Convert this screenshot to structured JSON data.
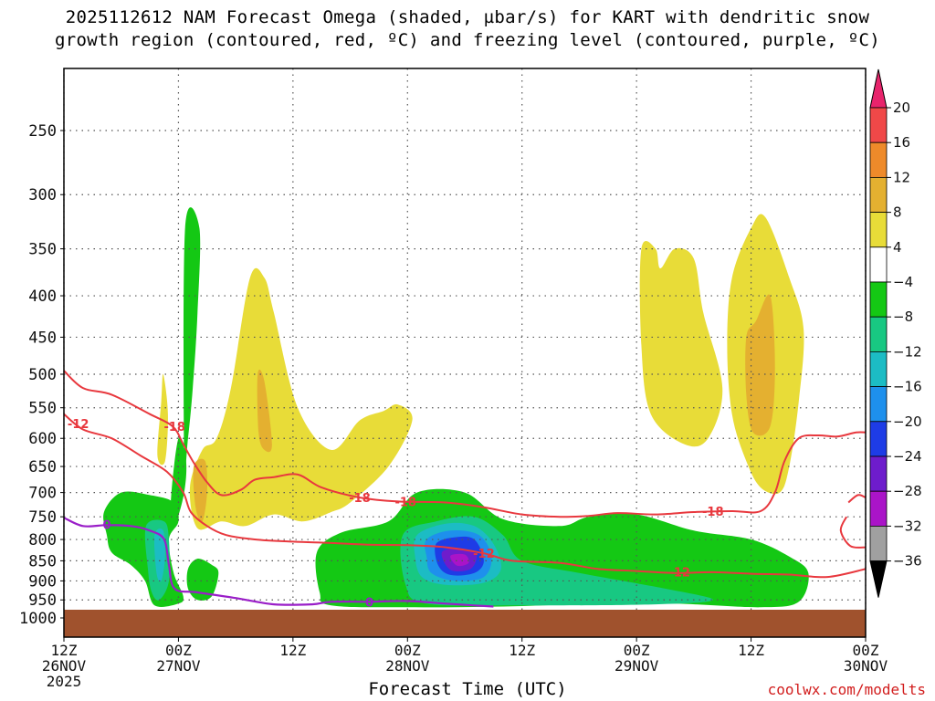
{
  "title_line1": "2025112612 NAM Forecast Omega (shaded, µbar/s) for KART with dendritic snow",
  "title_line2": "growth region (contoured, red, ºC) and freezing level (contoured, purple, ºC)",
  "credit": "coolwx.com/modelts",
  "chart_data": {
    "type": "heatmap",
    "xlabel": "Forecast Time (UTC)",
    "ylabel": "",
    "x_unit": "forecast hour from 2025112612",
    "xlim": [
      0,
      84
    ],
    "ylim_hPa": [
      1000,
      200
    ],
    "y_ticks": [
      250,
      300,
      350,
      400,
      450,
      500,
      550,
      600,
      650,
      700,
      750,
      800,
      850,
      900,
      950,
      1000
    ],
    "x_ticks": [
      {
        "hour": 0,
        "line1": "12Z",
        "line2": "26NOV",
        "line3": "2025"
      },
      {
        "hour": 12,
        "line1": "00Z",
        "line2": "27NOV",
        "line3": ""
      },
      {
        "hour": 24,
        "line1": "12Z",
        "line2": "",
        "line3": ""
      },
      {
        "hour": 36,
        "line1": "00Z",
        "line2": "28NOV",
        "line3": ""
      },
      {
        "hour": 48,
        "line1": "12Z",
        "line2": "",
        "line3": ""
      },
      {
        "hour": 60,
        "line1": "00Z",
        "line2": "29NOV",
        "line3": ""
      },
      {
        "hour": 72,
        "line1": "12Z",
        "line2": "",
        "line3": ""
      },
      {
        "hour": 84,
        "line1": "00Z",
        "line2": "30NOV",
        "line3": ""
      }
    ],
    "grid": true,
    "colorbar": {
      "labels": [
        "20",
        "16",
        "12",
        "8",
        "4",
        "−4",
        "−8",
        "−12",
        "−16",
        "−20",
        "−24",
        "−28",
        "−32",
        "−36"
      ],
      "colors": [
        "#e8246c",
        "#f04848",
        "#ee8a2a",
        "#e4b030",
        "#e8dc38",
        "#ffffff",
        "#14c814",
        "#18c882",
        "#1cbcc4",
        "#1e90ec",
        "#1e3ce6",
        "#6e1ccc",
        "#aa14c8",
        "#a0a0a0",
        "#000000"
      ]
    },
    "omega_regions": [
      {
        "value": -6,
        "color": "#14c814",
        "points": [
          [
            4.2,
            740
          ],
          [
            6,
            700
          ],
          [
            9,
            705
          ],
          [
            11.5,
            720
          ],
          [
            12,
            760
          ],
          [
            11,
            800
          ],
          [
            11.5,
            880
          ],
          [
            12.5,
            940
          ],
          [
            12,
            960
          ],
          [
            9.5,
            965
          ],
          [
            8.5,
            900
          ],
          [
            7,
            860
          ],
          [
            5,
            830
          ],
          [
            4.5,
            790
          ]
        ]
      },
      {
        "value": -10,
        "color": "#18c882",
        "points": [
          [
            8.6,
            770
          ],
          [
            10.5,
            760
          ],
          [
            11,
            800
          ],
          [
            11,
            900
          ],
          [
            10,
            950
          ],
          [
            9.2,
            930
          ],
          [
            8.8,
            870
          ]
        ]
      },
      {
        "value": -14,
        "color": "#1cbcc4",
        "points": [
          [
            9.5,
            790
          ],
          [
            10.4,
            780
          ],
          [
            10.6,
            840
          ],
          [
            10.2,
            900
          ],
          [
            9.7,
            880
          ]
        ]
      },
      {
        "value": -6,
        "color": "#14c814",
        "points": [
          [
            12.7,
            330
          ],
          [
            14.2,
            330
          ],
          [
            14,
            420
          ],
          [
            13.5,
            520
          ],
          [
            13,
            600
          ],
          [
            12.6,
            640
          ]
        ]
      },
      {
        "value": -6,
        "color": "#14c814",
        "points": [
          [
            11.2,
            720
          ],
          [
            12,
            600
          ],
          [
            12.8,
            640
          ],
          [
            12.6,
            700
          ],
          [
            11.7,
            760
          ]
        ]
      },
      {
        "value": -6,
        "color": "#14c814",
        "points": [
          [
            13,
            870
          ],
          [
            14,
            845
          ],
          [
            15.5,
            860
          ],
          [
            16.2,
            880
          ],
          [
            15.5,
            940
          ],
          [
            14,
            950
          ],
          [
            13,
            920
          ]
        ]
      },
      {
        "value": -6,
        "color": "#14c814",
        "points": [
          [
            26.5,
            830
          ],
          [
            29,
            785
          ],
          [
            34,
            760
          ],
          [
            37,
            700
          ],
          [
            42,
            700
          ],
          [
            46,
            755
          ],
          [
            52,
            770
          ],
          [
            55,
            750
          ],
          [
            60,
            745
          ],
          [
            66,
            780
          ],
          [
            72,
            800
          ],
          [
            76,
            840
          ],
          [
            78,
            880
          ],
          [
            77,
            955
          ],
          [
            73,
            970
          ],
          [
            64,
            960
          ],
          [
            56,
            960
          ],
          [
            46,
            968
          ],
          [
            36,
            970
          ],
          [
            28,
            965
          ],
          [
            26.8,
            930
          ]
        ]
      },
      {
        "value": -10,
        "color": "#18c882",
        "points": [
          [
            35.5,
            790
          ],
          [
            39,
            760
          ],
          [
            43,
            750
          ],
          [
            46,
            790
          ],
          [
            48,
            850
          ],
          [
            54,
            880
          ],
          [
            63,
            920
          ],
          [
            68,
            950
          ],
          [
            62,
            962
          ],
          [
            48,
            965
          ],
          [
            38,
            960
          ],
          [
            35.8,
            910
          ]
        ]
      },
      {
        "value": -14,
        "color": "#1cbcc4",
        "points": [
          [
            37,
            790
          ],
          [
            40,
            765
          ],
          [
            43,
            770
          ],
          [
            45,
            810
          ],
          [
            45.8,
            870
          ],
          [
            44,
            905
          ],
          [
            40,
            910
          ],
          [
            37.5,
            890
          ],
          [
            36.8,
            840
          ]
        ]
      },
      {
        "value": -18,
        "color": "#1e90ec",
        "points": [
          [
            38,
            800
          ],
          [
            40.5,
            780
          ],
          [
            43.5,
            790
          ],
          [
            44.8,
            840
          ],
          [
            44,
            890
          ],
          [
            41,
            900
          ],
          [
            38.5,
            880
          ],
          [
            38,
            840
          ]
        ]
      },
      {
        "value": -22,
        "color": "#1e3ce6",
        "points": [
          [
            39,
            810
          ],
          [
            41,
            795
          ],
          [
            43,
            800
          ],
          [
            44,
            850
          ],
          [
            43,
            880
          ],
          [
            40.5,
            885
          ],
          [
            39.2,
            860
          ]
        ]
      },
      {
        "value": -26,
        "color": "#6e1ccc",
        "points": [
          [
            39.6,
            830
          ],
          [
            41.5,
            820
          ],
          [
            43.2,
            835
          ],
          [
            42.6,
            870
          ],
          [
            40.5,
            872
          ]
        ]
      },
      {
        "value": -30,
        "color": "#aa14c8",
        "points": [
          [
            40.5,
            838
          ],
          [
            42,
            835
          ],
          [
            42.4,
            855
          ],
          [
            41.2,
            862
          ]
        ]
      },
      {
        "value": 6,
        "color": "#e8dc38",
        "points": [
          [
            9.8,
            630
          ],
          [
            10.2,
            540
          ],
          [
            10.4,
            500
          ],
          [
            10.9,
            560
          ],
          [
            10.6,
            640
          ]
        ]
      },
      {
        "value": 6,
        "color": "#e8dc38",
        "points": [
          [
            13.2,
            690
          ],
          [
            14.5,
            620
          ],
          [
            16,
            600
          ],
          [
            17.5,
            520
          ],
          [
            19.5,
            380
          ],
          [
            21,
            380
          ],
          [
            22,
            420
          ],
          [
            24.5,
            550
          ],
          [
            28,
            620
          ],
          [
            31,
            570
          ],
          [
            33.5,
            555
          ],
          [
            35,
            545
          ],
          [
            36.5,
            570
          ],
          [
            34,
            650
          ],
          [
            30,
            720
          ],
          [
            28,
            740
          ],
          [
            25,
            760
          ],
          [
            22,
            745
          ],
          [
            19,
            770
          ],
          [
            16.5,
            760
          ],
          [
            14,
            775
          ]
        ]
      },
      {
        "value": 10,
        "color": "#e4b030",
        "points": [
          [
            13.6,
            650
          ],
          [
            14.8,
            640
          ],
          [
            15,
            700
          ],
          [
            14.5,
            760
          ],
          [
            13.8,
            730
          ]
        ]
      },
      {
        "value": 10,
        "color": "#e4b030",
        "points": [
          [
            20.3,
            500
          ],
          [
            21,
            510
          ],
          [
            21.8,
            610
          ],
          [
            21,
            620
          ],
          [
            20.4,
            590
          ]
        ]
      },
      {
        "value": 6,
        "color": "#e8dc38",
        "points": [
          [
            60.5,
            350
          ],
          [
            62,
            350
          ],
          [
            62.5,
            370
          ],
          [
            64,
            350
          ],
          [
            66,
            360
          ],
          [
            67,
            420
          ],
          [
            69,
            520
          ],
          [
            67.5,
            600
          ],
          [
            65,
            610
          ],
          [
            61.5,
            560
          ],
          [
            60.5,
            460
          ]
        ]
      },
      {
        "value": 6,
        "color": "#e8dc38",
        "points": [
          [
            70,
            380
          ],
          [
            72,
            330
          ],
          [
            73.5,
            320
          ],
          [
            76,
            380
          ],
          [
            77.5,
            440
          ],
          [
            77,
            540
          ],
          [
            76,
            650
          ],
          [
            75,
            700
          ],
          [
            73,
            690
          ],
          [
            71.5,
            640
          ],
          [
            70,
            560
          ],
          [
            69.5,
            460
          ]
        ]
      },
      {
        "value": 10,
        "color": "#e4b030",
        "points": [
          [
            71.5,
            450
          ],
          [
            72.5,
            430
          ],
          [
            74,
            400
          ],
          [
            74.5,
            490
          ],
          [
            74,
            580
          ],
          [
            72.2,
            590
          ],
          [
            71.5,
            530
          ]
        ]
      }
    ],
    "contours": [
      {
        "label": "-12",
        "color": "#e8383e",
        "points": [
          [
            0,
            560
          ],
          [
            2,
            585
          ],
          [
            5,
            600
          ],
          [
            8,
            630
          ],
          [
            10.8,
            660
          ],
          [
            12.5,
            700
          ],
          [
            13.3,
            740
          ],
          [
            15,
            770
          ],
          [
            17,
            790
          ],
          [
            20,
            800
          ],
          [
            24,
            805
          ],
          [
            28,
            808
          ],
          [
            32,
            812
          ],
          [
            36,
            813
          ],
          [
            40,
            818
          ],
          [
            44,
            832
          ],
          [
            47,
            850
          ],
          [
            52,
            855
          ],
          [
            56,
            870
          ],
          [
            60,
            875
          ],
          [
            64,
            880
          ],
          [
            68,
            878
          ],
          [
            72,
            882
          ],
          [
            76,
            884
          ],
          [
            80,
            890
          ],
          [
            84,
            870
          ]
        ]
      },
      {
        "label": "-18",
        "color": "#e8383e",
        "points": [
          [
            0,
            495
          ],
          [
            2,
            520
          ],
          [
            5,
            530
          ],
          [
            9,
            560
          ],
          [
            11.4,
            580
          ],
          [
            12.5,
            610
          ],
          [
            13.5,
            640
          ],
          [
            15,
            680
          ],
          [
            16.5,
            705
          ],
          [
            18.5,
            695
          ],
          [
            20,
            675
          ],
          [
            22,
            670
          ],
          [
            24.5,
            665
          ],
          [
            27,
            690
          ],
          [
            31,
            710
          ],
          [
            35,
            718
          ],
          [
            40,
            720
          ],
          [
            44,
            730
          ],
          [
            48,
            745
          ],
          [
            52,
            750
          ],
          [
            55,
            748
          ],
          [
            58,
            742
          ],
          [
            62,
            745
          ],
          [
            66,
            740
          ],
          [
            70,
            738
          ],
          [
            73,
            738
          ],
          [
            74.5,
            700
          ],
          [
            75.5,
            640
          ],
          [
            77,
            600
          ],
          [
            79,
            595
          ],
          [
            81,
            597
          ],
          [
            83,
            590
          ],
          [
            84,
            590
          ]
        ]
      },
      {
        "label": "-18",
        "color": "#e8383e",
        "points": [
          [
            82.2,
            720
          ],
          [
            83.2,
            705
          ],
          [
            84,
            710
          ]
        ]
      },
      {
        "label": "-18",
        "color": "#e8383e",
        "points": [
          [
            82,
            750
          ],
          [
            81.4,
            780
          ],
          [
            82.4,
            815
          ],
          [
            84,
            818
          ]
        ]
      },
      {
        "label": "0",
        "color": "#9a1ec8",
        "points": [
          [
            0,
            752
          ],
          [
            2,
            770
          ],
          [
            4.5,
            768
          ],
          [
            7,
            770
          ],
          [
            9,
            780
          ],
          [
            10.5,
            800
          ],
          [
            11,
            860
          ],
          [
            11.6,
            920
          ],
          [
            14,
            930
          ],
          [
            18,
            945
          ],
          [
            22,
            962
          ],
          [
            26,
            962
          ],
          [
            28,
            955
          ],
          [
            32,
            955
          ],
          [
            36,
            953
          ],
          [
            40,
            960
          ],
          [
            43,
            965
          ],
          [
            45,
            968
          ]
        ]
      }
    ]
  }
}
